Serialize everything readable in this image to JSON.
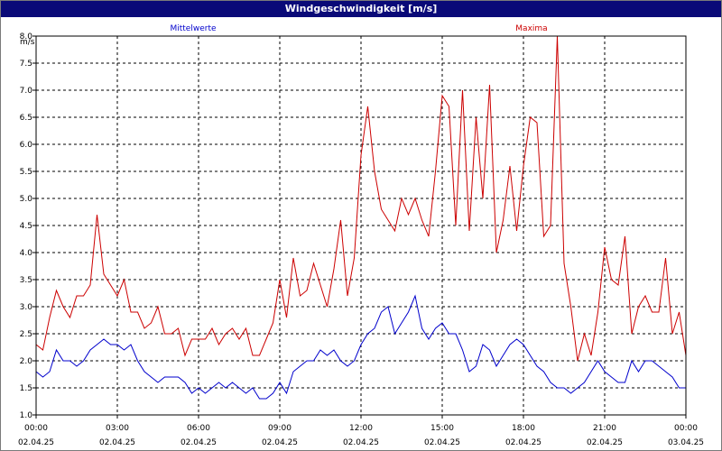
{
  "window": {
    "title": "Windgeschwindigkeit [m/s]"
  },
  "chart_data": {
    "type": "line",
    "title": "Windgeschwindigkeit [m/s]",
    "ylabel": "m/s",
    "xlabel": "",
    "ylim": [
      1.0,
      8.0
    ],
    "xlim": [
      "02.04.25 00:00",
      "03.04.25 00:00"
    ],
    "grid": true,
    "legend_placement": "top",
    "y_ticks": [
      "1.0",
      "1.5",
      "2.0",
      "2.5",
      "3.0",
      "3.5",
      "4.0",
      "4.5",
      "5.0",
      "5.5",
      "6.0",
      "6.5",
      "7.0",
      "7.5",
      "8.0"
    ],
    "x_ticks": [
      {
        "time": "00:00",
        "date": "02.04.25"
      },
      {
        "time": "03:00",
        "date": "02.04.25"
      },
      {
        "time": "06:00",
        "date": "02.04.25"
      },
      {
        "time": "09:00",
        "date": "02.04.25"
      },
      {
        "time": "12:00",
        "date": "02.04.25"
      },
      {
        "time": "15:00",
        "date": "02.04.25"
      },
      {
        "time": "18:00",
        "date": "02.04.25"
      },
      {
        "time": "21:00",
        "date": "02.04.25"
      },
      {
        "time": "00:00",
        "date": "03.04.25"
      }
    ],
    "x_hours": [
      0,
      0.25,
      0.5,
      0.75,
      1,
      1.25,
      1.5,
      1.75,
      2,
      2.25,
      2.5,
      2.75,
      3,
      3.25,
      3.5,
      3.75,
      4,
      4.25,
      4.5,
      4.75,
      5,
      5.25,
      5.5,
      5.75,
      6,
      6.25,
      6.5,
      6.75,
      7,
      7.25,
      7.5,
      7.75,
      8,
      8.25,
      8.5,
      8.75,
      9,
      9.25,
      9.5,
      9.75,
      10,
      10.25,
      10.5,
      10.75,
      11,
      11.25,
      11.5,
      11.75,
      12,
      12.25,
      12.5,
      12.75,
      13,
      13.25,
      13.5,
      13.75,
      14,
      14.25,
      14.5,
      14.75,
      15,
      15.25,
      15.5,
      15.75,
      16,
      16.25,
      16.5,
      16.75,
      17,
      17.25,
      17.5,
      17.75,
      18,
      18.25,
      18.5,
      18.75,
      19,
      19.25,
      19.5,
      19.75,
      20,
      20.25,
      20.5,
      20.75,
      21,
      21.25,
      21.5,
      21.75,
      22,
      22.25,
      22.5,
      22.75,
      23,
      23.25,
      23.5,
      23.75,
      24
    ],
    "series": [
      {
        "name": "Mittelwerte",
        "color": "#0000cc",
        "values": [
          1.8,
          1.7,
          1.8,
          2.2,
          2.0,
          2.0,
          1.9,
          2.0,
          2.2,
          2.3,
          2.4,
          2.3,
          2.3,
          2.2,
          2.3,
          2.0,
          1.8,
          1.7,
          1.6,
          1.7,
          1.7,
          1.7,
          1.6,
          1.4,
          1.5,
          1.4,
          1.5,
          1.6,
          1.5,
          1.6,
          1.5,
          1.4,
          1.5,
          1.3,
          1.3,
          1.4,
          1.6,
          1.4,
          1.8,
          1.9,
          2.0,
          2.0,
          2.2,
          2.1,
          2.2,
          2.0,
          1.9,
          2.0,
          2.3,
          2.5,
          2.6,
          2.9,
          3.0,
          2.5,
          2.7,
          2.9,
          3.2,
          2.6,
          2.4,
          2.6,
          2.7,
          2.5,
          2.5,
          2.2,
          1.8,
          1.9,
          2.3,
          2.2,
          1.9,
          2.1,
          2.3,
          2.4,
          2.3,
          2.1,
          1.9,
          1.8,
          1.6,
          1.5,
          1.5,
          1.4,
          1.5,
          1.6,
          1.8,
          2.0,
          1.8,
          1.7,
          1.6,
          1.6,
          2.0,
          1.8,
          2.0,
          2.0,
          1.9,
          1.8,
          1.7,
          1.5,
          1.5
        ]
      },
      {
        "name": "Maxima",
        "color": "#cc0000",
        "values": [
          2.3,
          2.2,
          2.8,
          3.3,
          3.0,
          2.8,
          3.2,
          3.2,
          3.4,
          4.7,
          3.6,
          3.4,
          3.2,
          3.5,
          2.9,
          2.9,
          2.6,
          2.7,
          3.0,
          2.5,
          2.5,
          2.6,
          2.1,
          2.4,
          2.4,
          2.4,
          2.6,
          2.3,
          2.5,
          2.6,
          2.4,
          2.6,
          2.1,
          2.1,
          2.4,
          2.7,
          3.5,
          2.8,
          3.9,
          3.2,
          3.3,
          3.8,
          3.4,
          3.0,
          3.7,
          4.6,
          3.2,
          3.9,
          5.8,
          6.7,
          5.5,
          4.8,
          4.6,
          4.4,
          5.0,
          4.7,
          5.0,
          4.6,
          4.3,
          5.5,
          6.9,
          6.7,
          4.5,
          7.0,
          4.4,
          6.5,
          5.0,
          7.1,
          4.0,
          4.6,
          5.6,
          4.4,
          5.6,
          6.5,
          6.4,
          4.3,
          4.5,
          8.0,
          3.8,
          3.0,
          2.0,
          2.5,
          2.1,
          2.9,
          4.1,
          3.5,
          3.4,
          4.3,
          2.5,
          3.0,
          3.2,
          2.9,
          2.9,
          3.9,
          2.5,
          2.9,
          2.1
        ]
      }
    ]
  }
}
